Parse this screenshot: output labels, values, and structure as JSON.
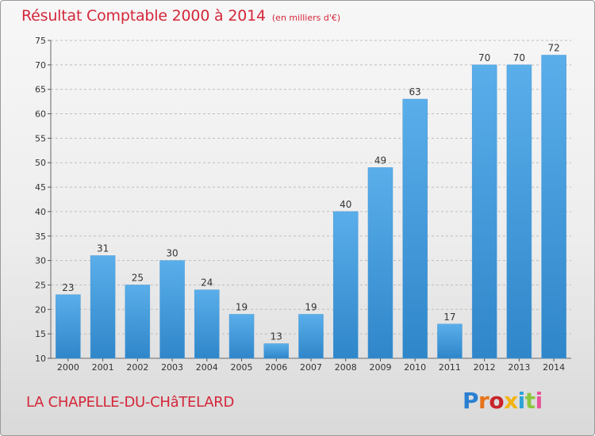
{
  "header": {
    "title": "Résultat Comptable 2000 à 2014",
    "unit": "(en milliers d'€)"
  },
  "footer": {
    "commune": "LA CHAPELLE-DU-CHâTELARD",
    "brand_letters": [
      "P",
      "r",
      "o",
      "x",
      "i",
      "t",
      "i"
    ],
    "brand_colors": [
      "#2a7fd0",
      "#e8731a",
      "#c8242b",
      "#f2b40f",
      "#2ba3da",
      "#8cc63f",
      "#e95298"
    ]
  },
  "colors": {
    "title": "#d4273a",
    "bar_light": "#5aaeea",
    "bar_dark": "#2f86c9",
    "grid": "#bdbdbd"
  },
  "chart_data": {
    "type": "bar",
    "title": "Résultat Comptable 2000 à 2014",
    "subtitle": "(en milliers d'€)",
    "categories": [
      "2000",
      "2001",
      "2002",
      "2003",
      "2004",
      "2005",
      "2006",
      "2007",
      "2008",
      "2009",
      "2010",
      "2011",
      "2012",
      "2013",
      "2014"
    ],
    "values": [
      23,
      31,
      25,
      30,
      24,
      19,
      13,
      19,
      40,
      49,
      63,
      17,
      70,
      70,
      72
    ],
    "ylim": [
      10,
      75
    ],
    "yticks": [
      10,
      15,
      20,
      25,
      30,
      35,
      40,
      45,
      50,
      55,
      60,
      65,
      70,
      75
    ],
    "grid": "horizontal dashed",
    "data_labels": true
  }
}
